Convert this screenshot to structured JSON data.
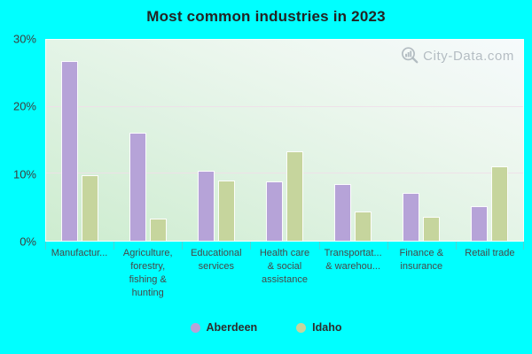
{
  "title": "Most common industries in 2023",
  "watermark": "City-Data.com",
  "colors": {
    "page_background": "#00ffff",
    "aberdeen": "#b6a3d8",
    "idaho": "#c6d59d",
    "plot_gradient_bottom": "#cdeccf",
    "plot_gradient_top": "#f6fafc",
    "gridline": "#f0dfe9",
    "title_text": "#232323",
    "axis_text": "#3d3d3d",
    "watermark_text": "#8d98a2"
  },
  "chart_data": {
    "type": "bar",
    "title": "Most common industries in 2023",
    "categories": [
      "Manufactur...",
      "Agriculture,\nforestry,\nfishing &\nhunting",
      "Educational\nservices",
      "Health care\n& social\nassistance",
      "Transportat...\n& warehou...",
      "Finance &\ninsurance",
      "Retail trade"
    ],
    "series": [
      {
        "name": "Aberdeen",
        "color": "#b6a3d8",
        "values": [
          26.8,
          16.1,
          10.5,
          8.8,
          8.5,
          7.2,
          5.2
        ]
      },
      {
        "name": "Idaho",
        "color": "#c6d59d",
        "values": [
          9.8,
          3.3,
          9.0,
          13.3,
          4.4,
          3.6,
          11.1
        ]
      }
    ],
    "xlabel": "",
    "ylabel": "",
    "ylim": [
      0,
      30
    ],
    "yticks": [
      {
        "value": 0,
        "label": "0%"
      },
      {
        "value": 10,
        "label": "10%"
      },
      {
        "value": 20,
        "label": "20%"
      },
      {
        "value": 30,
        "label": "30%"
      }
    ],
    "gridline_values": [
      10,
      20
    ],
    "grid": true,
    "legend_position": "bottom"
  }
}
